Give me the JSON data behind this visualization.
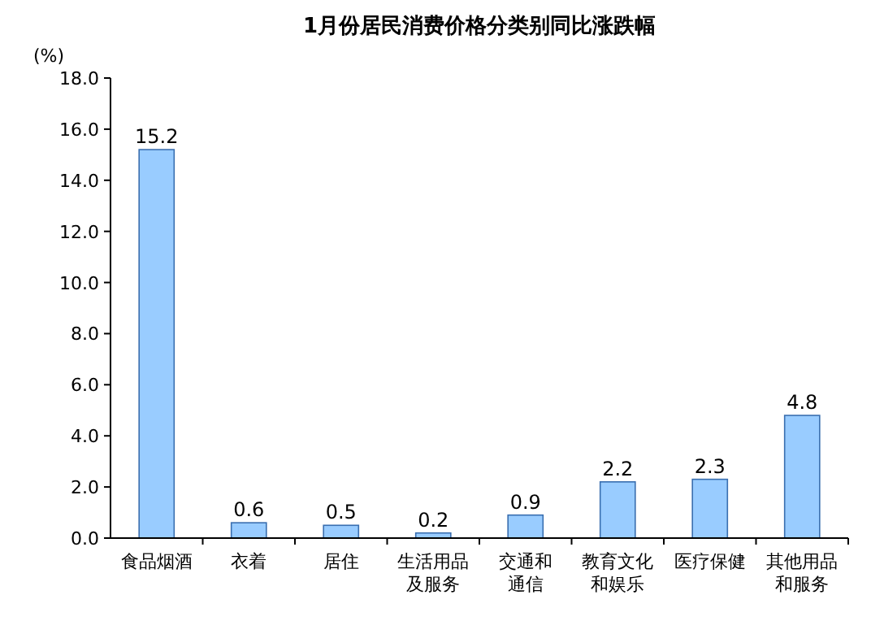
{
  "chart_data": {
    "type": "bar",
    "title": "1月份居民消费价格分类别同比涨跌幅",
    "ylabel": "(%)",
    "categories": [
      "食品烟酒",
      "衣着",
      "居住",
      "生活用品及服务",
      "交通和通信",
      "教育文化和娱乐",
      "医疗保健",
      "其他用品和服务"
    ],
    "values": [
      15.2,
      0.6,
      0.5,
      0.2,
      0.9,
      2.2,
      2.3,
      4.8
    ],
    "color": "#99ccff",
    "ylim": [
      0,
      18
    ],
    "yticks": [
      {
        "value": 0,
        "label": "0.0"
      },
      {
        "value": 2,
        "label": "2.0"
      },
      {
        "value": 4,
        "label": "4.0"
      },
      {
        "value": 6,
        "label": "6.0"
      },
      {
        "value": 8,
        "label": "8.0"
      },
      {
        "value": 10,
        "label": "10.0"
      },
      {
        "value": 12,
        "label": "12.0"
      },
      {
        "value": 14,
        "label": "14.0"
      },
      {
        "value": 16,
        "label": "16.0"
      },
      {
        "value": 18,
        "label": "18.0"
      }
    ],
    "data_labels": true,
    "grid": false
  }
}
